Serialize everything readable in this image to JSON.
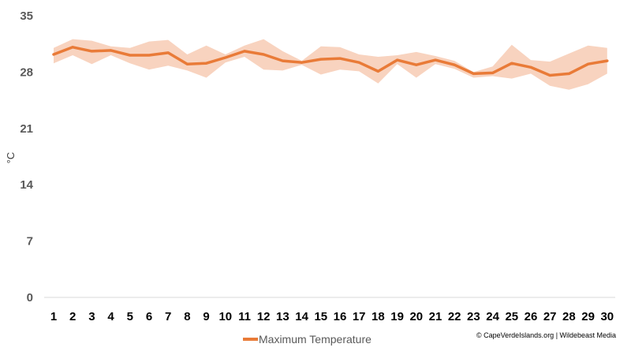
{
  "chart_data": {
    "type": "line",
    "ylabel": "°C",
    "ylim": [
      0,
      35
    ],
    "yticks": [
      "0",
      "7",
      "14",
      "21",
      "28",
      "35"
    ],
    "x": [
      1,
      2,
      3,
      4,
      5,
      6,
      7,
      8,
      9,
      10,
      11,
      12,
      13,
      14,
      15,
      16,
      17,
      18,
      19,
      20,
      21,
      22,
      23,
      24,
      25,
      26,
      27,
      28,
      29,
      30
    ],
    "series": [
      {
        "name": "Maximum Temperature",
        "values": [
          30.2,
          31.1,
          30.6,
          30.7,
          30.1,
          30.1,
          30.4,
          29.0,
          29.1,
          29.8,
          30.6,
          30.2,
          29.4,
          29.2,
          29.6,
          29.7,
          29.2,
          28.1,
          29.5,
          28.9,
          29.5,
          28.9,
          27.8,
          27.9,
          29.1,
          28.6,
          27.6,
          27.8,
          29.0,
          29.4
        ],
        "band_upper": [
          31.0,
          32.1,
          31.9,
          31.2,
          31.0,
          31.8,
          32.0,
          30.2,
          31.3,
          30.2,
          31.3,
          32.1,
          30.6,
          29.4,
          31.2,
          31.1,
          30.2,
          29.9,
          30.1,
          30.5,
          30.0,
          29.4,
          28.0,
          28.7,
          31.4,
          29.5,
          29.3,
          30.3,
          31.3,
          31.0
        ],
        "band_lower": [
          29.1,
          30.1,
          29.0,
          30.1,
          29.1,
          28.3,
          28.8,
          28.2,
          27.3,
          29.2,
          29.9,
          28.3,
          28.2,
          28.9,
          27.7,
          28.3,
          28.1,
          26.6,
          29.0,
          27.3,
          29.0,
          28.4,
          27.3,
          27.5,
          27.2,
          27.8,
          26.3,
          25.8,
          26.5,
          27.8
        ]
      }
    ],
    "legend_position": "bottom",
    "colors": {
      "line": "#E97B38",
      "band": "#F8D3BF",
      "axis": "#D9D9D9"
    }
  },
  "credit": "© CapeVerdeIslands.org | Wildebeast Media"
}
